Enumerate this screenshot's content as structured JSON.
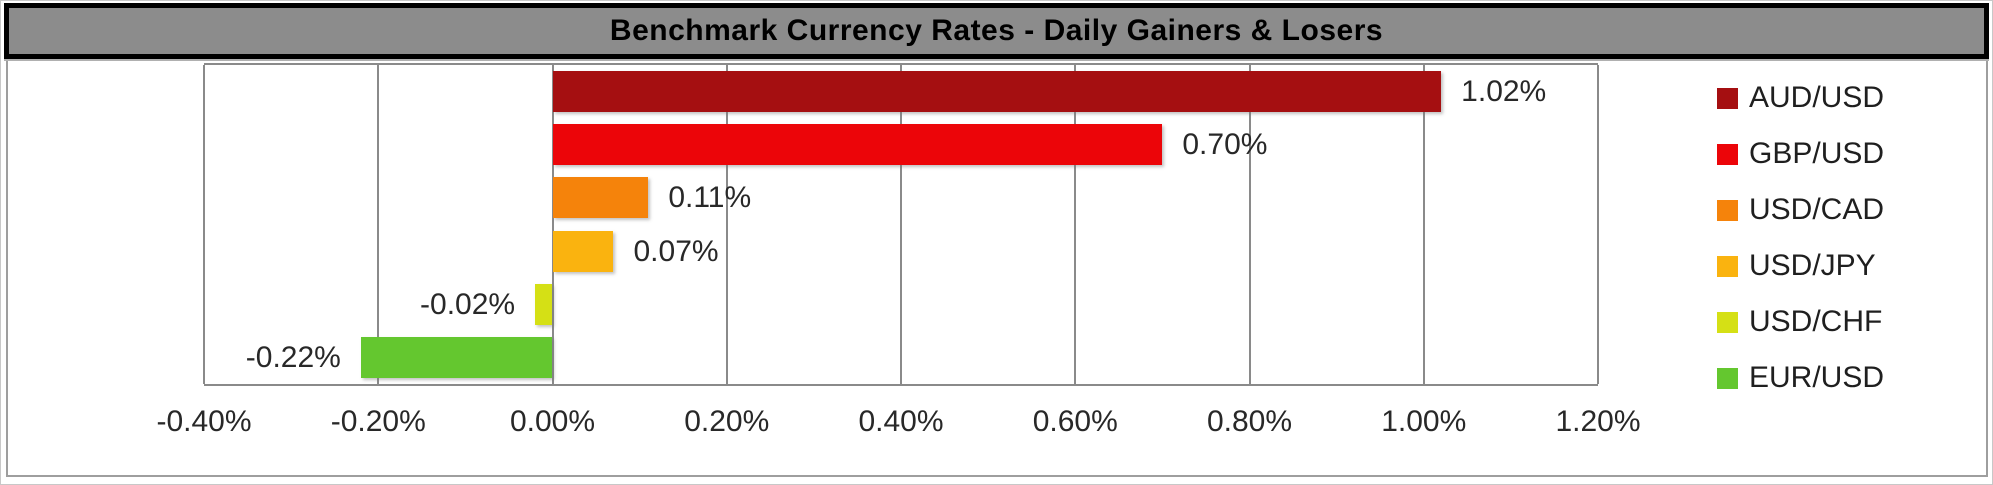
{
  "title_bar": {
    "text": "Benchmark Currency Rates - Daily Gainers & Losers"
  },
  "colors": {
    "title_bar_bg": "#8c8c8c",
    "title_text": "#000000",
    "grid": "#8a8a8a",
    "axis_text": "#282828",
    "chart_border": "#9e9e9e"
  },
  "chart_data": {
    "type": "bar",
    "orientation": "horizontal",
    "title": "Benchmark Currency Rates - Daily Gainers & Losers",
    "categories": [
      "AUD/USD",
      "GBP/USD",
      "USD/CAD",
      "USD/JPY",
      "USD/CHF",
      "EUR/USD"
    ],
    "values": [
      1.02,
      0.7,
      0.11,
      0.07,
      -0.02,
      -0.22
    ],
    "value_labels": [
      "1.02%",
      "0.70%",
      "0.11%",
      "0.07%",
      "-0.02%",
      "-0.22%"
    ],
    "bar_colors": [
      "#A50F11",
      "#EC0509",
      "#F5830B",
      "#FAB30F",
      "#D5E015",
      "#64C72F"
    ],
    "xlabel": "",
    "ylabel": "",
    "xlim": [
      -0.4,
      1.2
    ],
    "x_tick_values": [
      -0.4,
      -0.2,
      0.0,
      0.2,
      0.4,
      0.6,
      0.8,
      1.0,
      1.2
    ],
    "x_tick_labels": [
      "-0.40%",
      "-0.20%",
      "0.00%",
      "0.20%",
      "0.40%",
      "0.60%",
      "0.80%",
      "1.00%",
      "1.20%"
    ],
    "grid": true,
    "legend_position": "right",
    "legend": [
      {
        "label": "AUD/USD",
        "color": "#A50F11"
      },
      {
        "label": "GBP/USD",
        "color": "#EC0509"
      },
      {
        "label": "USD/CAD",
        "color": "#F5830B"
      },
      {
        "label": "USD/JPY",
        "color": "#FAB30F"
      },
      {
        "label": "USD/CHF",
        "color": "#D5E015"
      },
      {
        "label": "EUR/USD",
        "color": "#64C72F"
      }
    ]
  }
}
